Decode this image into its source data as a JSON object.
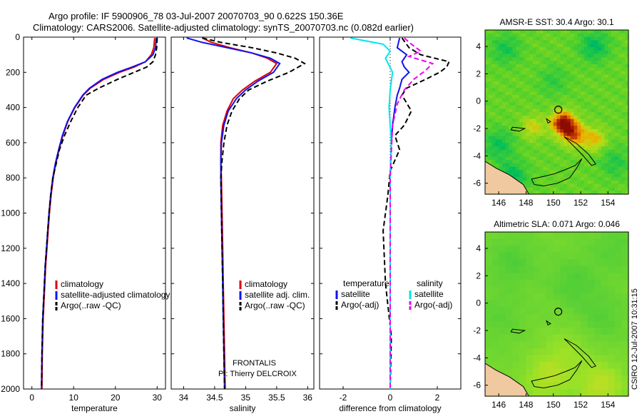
{
  "header": {
    "line1": "Argo profile: IF 5900906_78 03-Jul-2007 20070703_90 0.622S 150.36E",
    "line2": "Climatology: CARS2006. Satellite-adjusted climatology: synTS_20070703.nc (0.082d earlier)"
  },
  "footer": {
    "frontalis": "FRONTALIS",
    "pi": "PI: Thierry DELCROIX",
    "stamp": "CSIRO 12-Jul-2007 10:31:15"
  },
  "colors": {
    "climatology": "#dd0000",
    "satellite": "#1111ee",
    "argo": "#000000",
    "salinity_satellite": "#00e5ee",
    "salinity_argo": "#ee00ee",
    "land": "#f1c9a0"
  },
  "chart_data": [
    {
      "id": "temperature",
      "type": "line",
      "xlabel": "temperature",
      "ylabel": "",
      "xlim": [
        -2,
        32
      ],
      "ylim": [
        2000,
        0
      ],
      "xticks": [
        0,
        10,
        20,
        30
      ],
      "yticks": [
        0,
        200,
        400,
        600,
        800,
        1000,
        1200,
        1400,
        1600,
        1800,
        2000
      ],
      "legend": [
        {
          "label": "climatology",
          "color": "#dd0000",
          "dash": "solid"
        },
        {
          "label": "satellite-adjusted climatology",
          "color": "#1111ee",
          "dash": "solid"
        },
        {
          "label": "Argo(..raw -QC)",
          "color": "#000000",
          "dash": "dashed"
        }
      ],
      "series": [
        {
          "name": "climatology",
          "color": "#dd0000",
          "dash": "solid",
          "x": [
            29.4,
            29.2,
            28.6,
            27.2,
            24.5,
            21.0,
            17.2,
            14.0,
            12.3,
            10.3,
            8.6,
            7.4,
            6.5,
            5.7,
            5.1,
            4.6,
            4.2,
            3.9,
            3.6,
            3.3,
            3.0,
            2.7,
            2.5,
            2.4
          ],
          "y": [
            5,
            60,
            100,
            140,
            170,
            200,
            240,
            290,
            330,
            400,
            480,
            560,
            640,
            720,
            800,
            900,
            1000,
            1100,
            1200,
            1300,
            1450,
            1600,
            1800,
            2000
          ]
        },
        {
          "name": "satellite",
          "color": "#1111ee",
          "dash": "solid",
          "x": [
            29.8,
            29.6,
            29.0,
            27.2,
            24.0,
            20.5,
            16.8,
            13.8,
            12.2,
            10.2,
            8.5,
            7.3,
            6.4,
            5.6,
            5.0,
            4.5,
            4.1,
            3.8,
            3.5,
            3.2,
            2.9,
            2.6,
            2.4,
            2.3
          ],
          "y": [
            5,
            60,
            100,
            140,
            170,
            200,
            240,
            290,
            330,
            400,
            480,
            560,
            640,
            720,
            800,
            900,
            1000,
            1100,
            1200,
            1300,
            1450,
            1600,
            1800,
            2000
          ]
        },
        {
          "name": "Argo(..raw -QC)",
          "color": "#000000",
          "dash": "dashed",
          "x": [
            30.0,
            29.9,
            29.6,
            29.0,
            27.5,
            24.5,
            20.5,
            16.0,
            13.0,
            11.0,
            9.3,
            7.8,
            6.6,
            5.8,
            5.0,
            4.5,
            4.1,
            3.8,
            3.5,
            3.2,
            2.9,
            2.6,
            2.4,
            2.3
          ],
          "y": [
            5,
            60,
            100,
            140,
            170,
            200,
            240,
            290,
            330,
            400,
            480,
            560,
            640,
            720,
            800,
            900,
            1000,
            1100,
            1200,
            1300,
            1450,
            1600,
            1800,
            2000
          ]
        }
      ]
    },
    {
      "id": "salinity",
      "type": "line",
      "xlabel": "salinity",
      "ylabel": "",
      "xlim": [
        33.8,
        36.1
      ],
      "ylim": [
        2000,
        0
      ],
      "xticks": [
        34,
        34.5,
        35,
        35.5,
        36
      ],
      "yticks": [
        0,
        200,
        400,
        600,
        800,
        1000,
        1200,
        1400,
        1600,
        1800,
        2000
      ],
      "legend": [
        {
          "label": "climatology",
          "color": "#dd0000",
          "dash": "solid"
        },
        {
          "label": "satellite adj. clim.",
          "color": "#1111ee",
          "dash": "solid"
        },
        {
          "label": "Argo(..raw -QC)",
          "color": "#000000",
          "dash": "dashed"
        }
      ],
      "series": [
        {
          "name": "climatology",
          "color": "#dd0000",
          "dash": "solid",
          "x": [
            34.3,
            34.45,
            34.75,
            35.1,
            35.35,
            35.5,
            35.4,
            35.15,
            34.95,
            34.8,
            34.7,
            34.63,
            34.6,
            34.6,
            34.61,
            34.62,
            34.63,
            34.64,
            34.65,
            34.66,
            34.67
          ],
          "y": [
            5,
            30,
            60,
            90,
            120,
            150,
            200,
            250,
            300,
            350,
            420,
            500,
            600,
            700,
            800,
            1000,
            1200,
            1400,
            1600,
            1800,
            2000
          ]
        },
        {
          "name": "satellite",
          "color": "#1111ee",
          "dash": "solid",
          "x": [
            34.05,
            34.3,
            34.7,
            35.1,
            35.4,
            35.55,
            35.45,
            35.2,
            35.0,
            34.85,
            34.72,
            34.65,
            34.61,
            34.6,
            34.6,
            34.61,
            34.62,
            34.63,
            34.64,
            34.65,
            34.66
          ],
          "y": [
            5,
            30,
            60,
            90,
            120,
            150,
            200,
            250,
            300,
            350,
            420,
            500,
            600,
            700,
            800,
            1000,
            1200,
            1400,
            1600,
            1800,
            2000
          ]
        },
        {
          "name": "Argo(..raw -QC)",
          "color": "#000000",
          "dash": "dashed",
          "x": [
            34.3,
            34.6,
            35.1,
            35.5,
            35.8,
            35.95,
            35.7,
            35.35,
            35.05,
            34.9,
            34.78,
            34.7,
            34.65,
            34.62,
            34.6,
            34.61,
            34.62,
            34.63,
            34.64,
            34.65,
            34.66
          ],
          "y": [
            5,
            30,
            60,
            90,
            120,
            150,
            200,
            250,
            300,
            350,
            420,
            500,
            600,
            700,
            800,
            1000,
            1200,
            1400,
            1600,
            1800,
            2000
          ]
        }
      ]
    },
    {
      "id": "difference",
      "type": "line",
      "xlabel": "difference from climatology",
      "ylabel": "",
      "xlim": [
        -3,
        3
      ],
      "ylim": [
        2000,
        0
      ],
      "xticks": [
        -2,
        0,
        2
      ],
      "yticks": [
        0,
        200,
        400,
        600,
        800,
        1000,
        1200,
        1400,
        1600,
        1800,
        2000
      ],
      "legend_titles": [
        "temperature",
        "salinity"
      ],
      "legend": [
        {
          "label": "satellite",
          "color": "#1111ee",
          "dash": "solid",
          "column": 0
        },
        {
          "label": "Argo(-adj)",
          "color": "#000000",
          "dash": "dashed",
          "column": 0
        },
        {
          "label": "satellite",
          "color": "#00e5ee",
          "dash": "solid",
          "column": 1
        },
        {
          "label": "Argo(-adj)",
          "color": "#ee00ee",
          "dash": "dashed",
          "column": 1
        }
      ],
      "series": [
        {
          "name": "temperature satellite",
          "color": "#1111ee",
          "dash": "solid",
          "x": [
            0.4,
            0.3,
            0.7,
            0.5,
            0.6,
            0.8,
            0.5,
            0.4,
            0.3,
            0.2,
            0.1,
            0.05,
            0.0,
            0.0,
            0.0,
            0.0
          ],
          "y": [
            5,
            60,
            100,
            140,
            170,
            200,
            240,
            290,
            330,
            400,
            500,
            600,
            800,
            1200,
            1600,
            2000
          ]
        },
        {
          "name": "temperature Argo(-adj)",
          "color": "#000000",
          "dash": "dashed",
          "x": [
            0.5,
            0.8,
            1.3,
            2.5,
            2.4,
            2.1,
            1.5,
            0.7,
            0.5,
            0.9,
            0.6,
            0.2,
            0.4,
            0.0,
            -0.1,
            -0.3,
            -0.2,
            0.05,
            0.0
          ],
          "y": [
            5,
            60,
            100,
            140,
            170,
            200,
            240,
            290,
            330,
            420,
            500,
            560,
            640,
            760,
            900,
            1100,
            1400,
            1700,
            2000
          ]
        },
        {
          "name": "salinity satellite",
          "color": "#00e5ee",
          "dash": "solid",
          "x": [
            -1.7,
            -0.3,
            0.0,
            -0.2,
            0.1,
            0.0,
            -0.05,
            0.05,
            0.0,
            0.0,
            0.0,
            0.0
          ],
          "y": [
            5,
            40,
            80,
            120,
            200,
            300,
            400,
            600,
            800,
            1200,
            1600,
            2000
          ]
        },
        {
          "name": "salinity Argo(-adj)",
          "color": "#ee00ee",
          "dash": "dashed",
          "x": [
            0.6,
            0.9,
            1.3,
            0.8,
            1.8,
            1.5,
            1.0,
            0.6,
            0.3,
            0.1,
            0.0,
            0.0
          ],
          "y": [
            5,
            40,
            80,
            110,
            150,
            190,
            240,
            300,
            380,
            500,
            800,
            2000
          ]
        }
      ]
    },
    {
      "id": "sst_map",
      "type": "heatmap",
      "title": "AMSR-E SST: 30.4 Argo: 30.1",
      "xlim": [
        145,
        155.5
      ],
      "ylim": [
        -6.8,
        5.2
      ],
      "xticks": [
        146,
        148,
        150,
        152,
        154
      ],
      "yticks": [
        4,
        2,
        0,
        -2,
        -4,
        -6
      ],
      "marker": {
        "lon": 150.36,
        "lat": -0.622
      },
      "hotspots": [
        {
          "lon": 150.7,
          "lat": -1.6,
          "strength": 1.0
        },
        {
          "lon": 151.5,
          "lat": -2.4,
          "strength": 0.7
        },
        {
          "lon": 153.0,
          "lat": -2.8,
          "strength": 0.45
        },
        {
          "lon": 148.5,
          "lat": -1.9,
          "strength": 0.35
        }
      ],
      "coolspots": [
        {
          "lon": 147.0,
          "lat": -5.5,
          "strength": 0.8
        },
        {
          "lon": 146.0,
          "lat": -3.2,
          "strength": 0.7
        },
        {
          "lon": 153.0,
          "lat": 4.0,
          "strength": 0.8
        },
        {
          "lon": 146.5,
          "lat": 3.8,
          "strength": 0.6
        },
        {
          "lon": 154.5,
          "lat": -4.5,
          "strength": 0.5
        },
        {
          "lon": 150.0,
          "lat": 1.5,
          "strength": 0.4
        }
      ]
    },
    {
      "id": "sla_map",
      "type": "heatmap",
      "title": "Altimetric SLA: 0.071 Argo: 0.046",
      "xlim": [
        145,
        155.5
      ],
      "ylim": [
        -6.8,
        5.2
      ],
      "xticks": [
        146,
        148,
        150,
        152,
        154
      ],
      "yticks": [
        4,
        2,
        0,
        -2,
        -4,
        -6
      ],
      "marker": {
        "lon": 150.36,
        "lat": -0.622
      },
      "hotspots": [
        {
          "lon": 149.5,
          "lat": -5.5,
          "strength": 0.5
        },
        {
          "lon": 153.5,
          "lat": -6.0,
          "strength": 0.6
        },
        {
          "lon": 151.0,
          "lat": -3.5,
          "strength": 0.3
        }
      ],
      "coolspots": [
        {
          "lon": 147.0,
          "lat": 3.0,
          "strength": 0.6
        },
        {
          "lon": 151.5,
          "lat": 1.5,
          "strength": 0.6
        },
        {
          "lon": 154.5,
          "lat": 4.0,
          "strength": 0.5
        },
        {
          "lon": 146.0,
          "lat": -1.0,
          "strength": 0.4
        },
        {
          "lon": 153.5,
          "lat": -1.0,
          "strength": 0.5
        }
      ]
    }
  ]
}
